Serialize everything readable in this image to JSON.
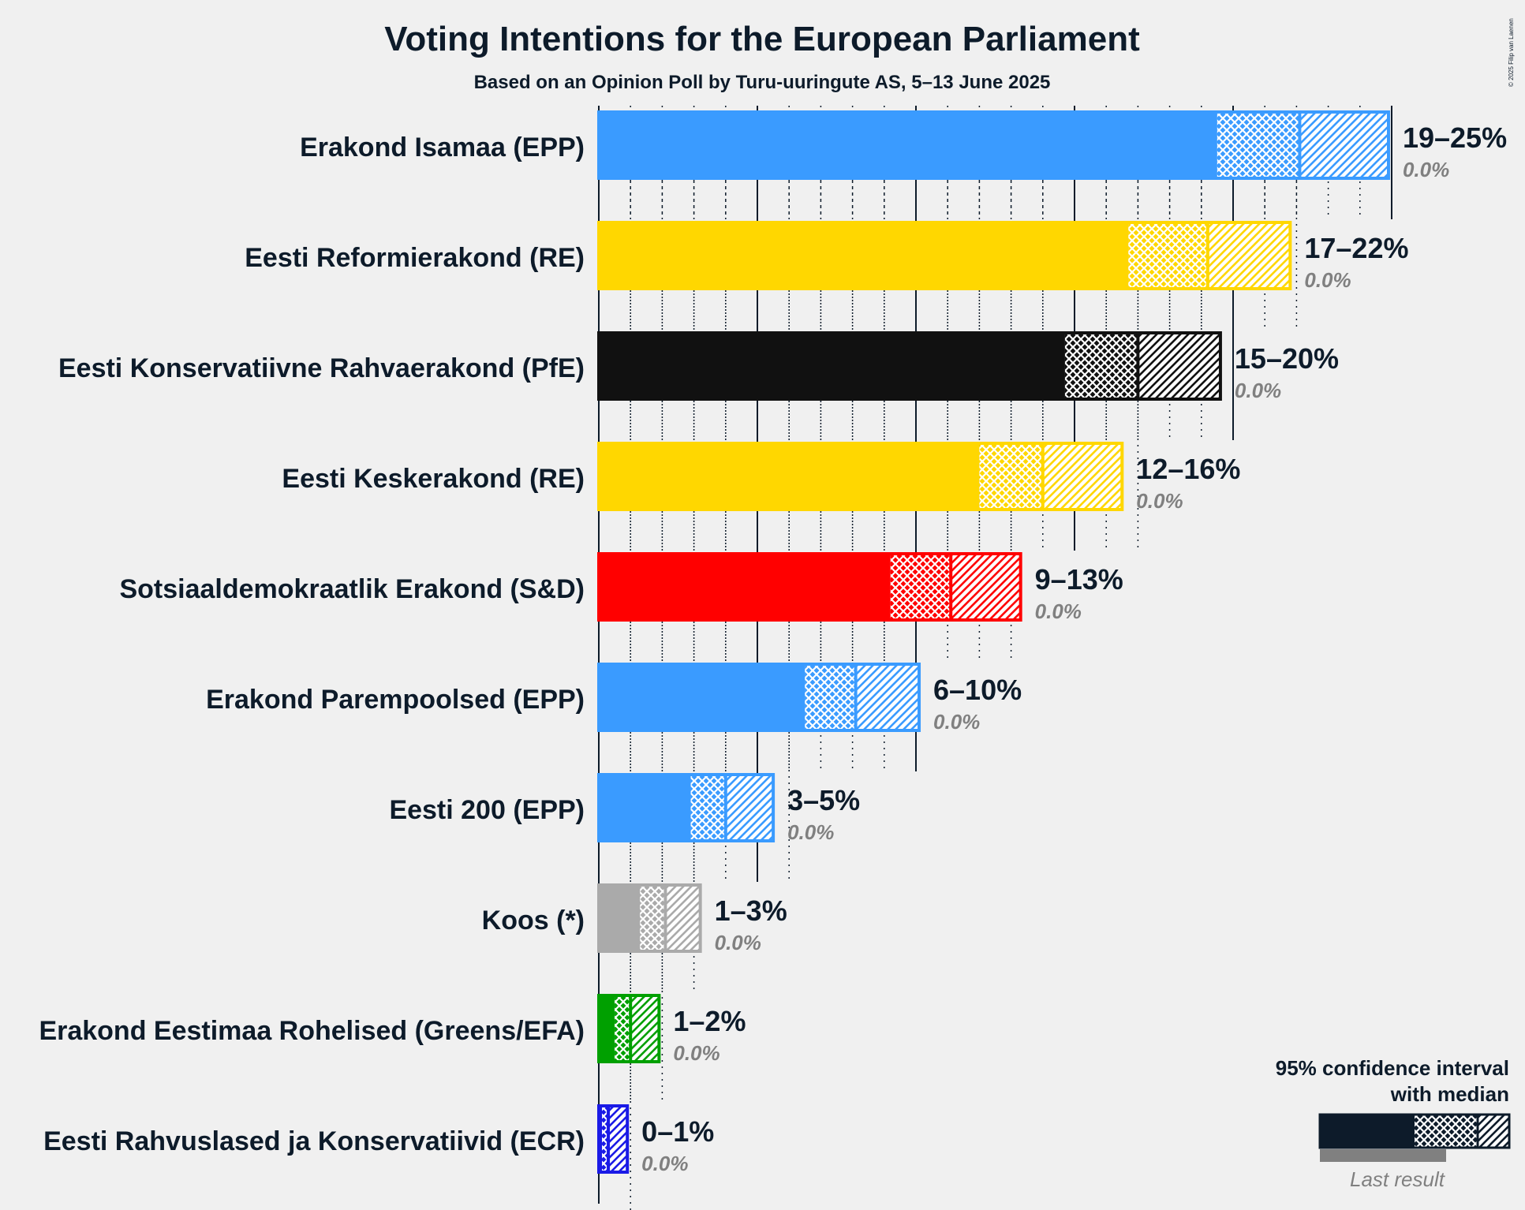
{
  "title": "Voting Intentions for the European Parliament",
  "subtitle": "Based on an Opinion Poll by Turu-uuringute AS, 5–13 June 2025",
  "copyright": "© 2025 Filip van Laenen",
  "legend": {
    "line1": "95% confidence interval",
    "line2": "with median",
    "last_result": "Last result"
  },
  "chart_data": {
    "type": "bar",
    "orientation": "horizontal",
    "title": "Voting Intentions for the European Parliament",
    "subtitle": "Based on an Opinion Poll by Turu-uuringute AS, 5–13 June 2025",
    "xlim": [
      0,
      25
    ],
    "grid_major_every": 5,
    "grid_minor_every": 1,
    "legend_position": "bottom-right",
    "categories": [
      "Erakond Isamaa (EPP)",
      "Eesti Reformierakond (RE)",
      "Eesti Konservatiivne Rahvaerakond (PfE)",
      "Eesti Keskerakond (RE)",
      "Sotsiaaldemokraatlik Erakond (S&D)",
      "Erakond Parempoolsed (EPP)",
      "Eesti 200 (EPP)",
      "Koos (*)",
      "Erakond Eestimaa Rohelised (Greens/EFA)",
      "Eesti Rahvuslased ja Konservatiivid (ECR)"
    ],
    "series": [
      {
        "party": "Erakond Isamaa (EPP)",
        "color": "#3a9bff",
        "ci_low": 19.5,
        "median": 22.1,
        "ci_high": 24.9,
        "range_label": "19–25%",
        "last_result_label": "0.0%",
        "last_result": 0.0
      },
      {
        "party": "Eesti Reformierakond (RE)",
        "color": "#ffd700",
        "ci_low": 16.7,
        "median": 19.2,
        "ci_high": 21.8,
        "range_label": "17–22%",
        "last_result_label": "0.0%",
        "last_result": 0.0
      },
      {
        "party": "Eesti Konservatiivne Rahvaerakond (PfE)",
        "color": "#111111",
        "ci_low": 14.7,
        "median": 17.0,
        "ci_high": 19.6,
        "range_label": "15–20%",
        "last_result_label": "0.0%",
        "last_result": 0.0
      },
      {
        "party": "Eesti Keskerakond (RE)",
        "color": "#ffd700",
        "ci_low": 12.0,
        "median": 14.0,
        "ci_high": 16.5,
        "range_label": "12–16%",
        "last_result_label": "0.0%",
        "last_result": 0.0
      },
      {
        "party": "Sotsiaaldemokraatlik Erakond (S&D)",
        "color": "#ff0000",
        "ci_low": 9.2,
        "median": 11.1,
        "ci_high": 13.3,
        "range_label": "9–13%",
        "last_result_label": "0.0%",
        "last_result": 0.0
      },
      {
        "party": "Erakond Parempoolsed (EPP)",
        "color": "#3a9bff",
        "ci_low": 6.5,
        "median": 8.1,
        "ci_high": 10.1,
        "range_label": "6–10%",
        "last_result_label": "0.0%",
        "last_result": 0.0
      },
      {
        "party": "Eesti 200 (EPP)",
        "color": "#3a9bff",
        "ci_low": 2.9,
        "median": 4.0,
        "ci_high": 5.5,
        "range_label": "3–5%",
        "last_result_label": "0.0%",
        "last_result": 0.0
      },
      {
        "party": "Koos (*)",
        "color": "#aaaaaa",
        "ci_low": 1.3,
        "median": 2.1,
        "ci_high": 3.2,
        "range_label": "1–3%",
        "last_result_label": "0.0%",
        "last_result": 0.0
      },
      {
        "party": "Erakond Eestimaa Rohelised (Greens/EFA)",
        "color": "#00a000",
        "ci_low": 0.5,
        "median": 1.0,
        "ci_high": 1.9,
        "range_label": "1–2%",
        "last_result_label": "0.0%",
        "last_result": 0.0
      },
      {
        "party": "Eesti Rahvuslased ja Konservatiivid (ECR)",
        "color": "#1a1ae6",
        "ci_low": 0.1,
        "median": 0.3,
        "ci_high": 0.9,
        "range_label": "0–1%",
        "last_result_label": "0.0%",
        "last_result": 0.0
      }
    ]
  }
}
